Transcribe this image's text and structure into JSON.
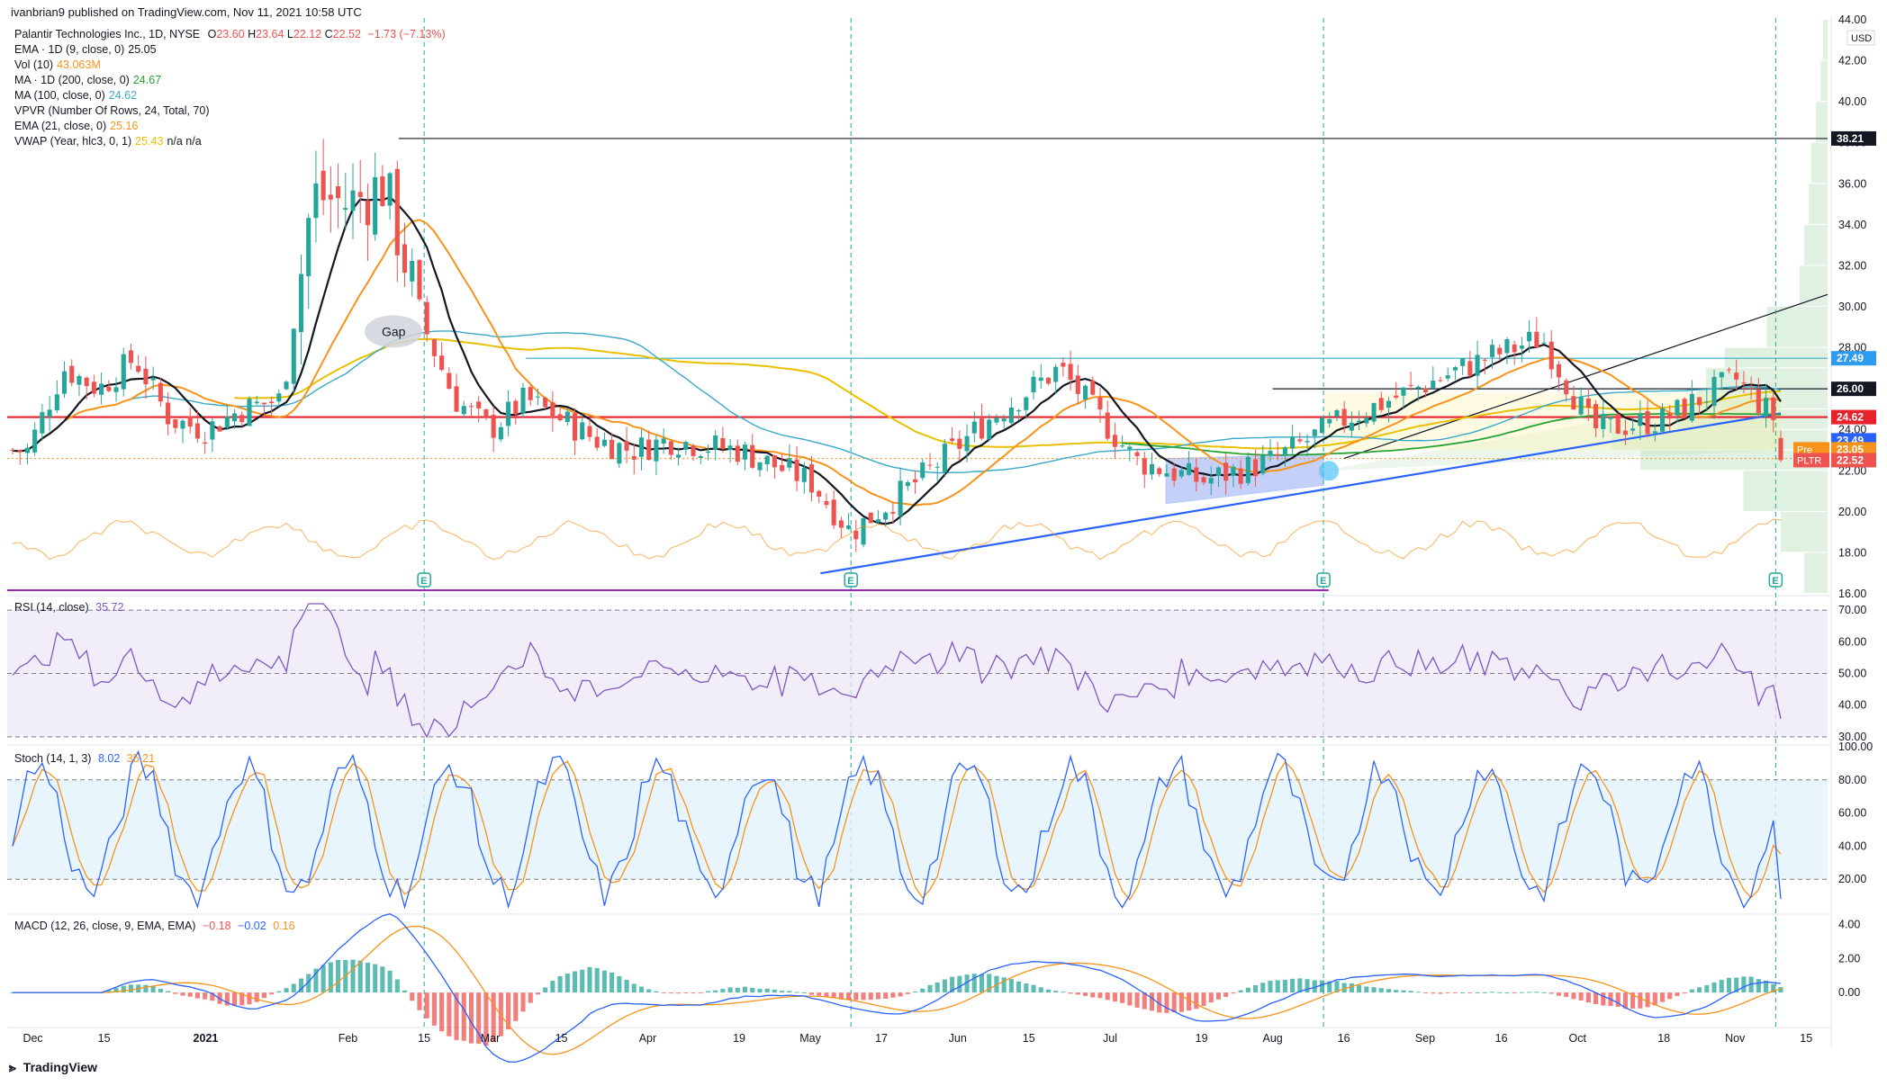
{
  "header": {
    "publisher": "ivanbrian9 published on TradingView.com, Nov 11, 2021 10:58 UTC"
  },
  "symbol_line": {
    "name": "Palantir Technologies Inc., 1D, NYSE",
    "o_label": "O",
    "o": "23.60",
    "h_label": "H",
    "h": "23.64",
    "l_label": "L",
    "l": "22.12",
    "c_label": "C",
    "c": "22.52",
    "change": "−1.73 (−7.13%)"
  },
  "indicators": [
    {
      "label": "EMA · 1D (9, close, 0)",
      "value": "25.05",
      "color": "#131722"
    },
    {
      "label": "Vol (10)",
      "value": "43.063M",
      "color": "#f7931a"
    },
    {
      "label": "MA · 1D (200, close, 0)",
      "value": "24.67",
      "color": "#26a333"
    },
    {
      "label": "MA (100, close, 0)",
      "value": "24.62",
      "color": "#39a9c9"
    },
    {
      "label": "VPVR (Number Of Rows, 24, Total, 70)",
      "value": "",
      "color": "#131722"
    },
    {
      "label": "EMA (21, close, 0)",
      "value": "25.16",
      "color": "#f7931a"
    },
    {
      "label": "VWAP (Year, hlc3, 0, 1)",
      "value": "25.43",
      "extra": "n/a  n/a",
      "color": "#e8c000"
    }
  ],
  "annotations": {
    "gap": "Gap",
    "earnings_marker": "E"
  },
  "price_axis": {
    "currency": "USD",
    "ticks": [
      "44.00",
      "42.00",
      "40.00",
      "38.00",
      "36.00",
      "34.00",
      "32.00",
      "30.00",
      "28.00",
      "26.00",
      "24.00",
      "22.00",
      "20.00",
      "18.00",
      "16.00"
    ]
  },
  "price_badges": [
    {
      "text": "38.21",
      "value": 38.21,
      "bg": "#131722",
      "fg": "#ffffff"
    },
    {
      "text": "27.49",
      "value": 27.49,
      "bg": "#2e9bf0",
      "fg": "#ffffff"
    },
    {
      "text": "26.00",
      "value": 26.0,
      "bg": "#131722",
      "fg": "#ffffff"
    },
    {
      "text": "24.62",
      "value": 24.62,
      "bg": "#e8212d",
      "fg": "#ffffff"
    },
    {
      "text": "23.49",
      "value": 23.49,
      "bg": "#2962ff",
      "fg": "#ffffff"
    },
    {
      "text": "23.05",
      "prefix": "Pre",
      "value": 23.05,
      "bg": "#f7931a",
      "fg": "#ffffff"
    },
    {
      "text": "22.52",
      "prefix": "PLTR",
      "value": 22.52,
      "bg": "#ef5350",
      "fg": "#ffffff"
    }
  ],
  "rsi": {
    "label": "RSI (14, close)",
    "value": "35.72",
    "ticks": [
      "70.00",
      "60.00",
      "50.00",
      "40.00",
      "30.00"
    ]
  },
  "stoch": {
    "label": "Stoch (14, 1, 3)",
    "k": "8.02",
    "d": "35.21",
    "ticks": [
      "100.00",
      "80.00",
      "60.00",
      "40.00",
      "20.00"
    ]
  },
  "macd": {
    "label": "MACD (12, 26, close, 9, EMA, EMA)",
    "hist": "−0.18",
    "macd": "−0.02",
    "signal": "0.16",
    "ticks": [
      "4.00",
      "2.00",
      "0.00"
    ]
  },
  "time_axis": [
    "Dec",
    "15",
    "2021",
    "Feb",
    "15",
    "Mar",
    "15",
    "Apr",
    "19",
    "May",
    "17",
    "Jun",
    "15",
    "Jul",
    "19",
    "Aug",
    "16",
    "Sep",
    "16",
    "Oct",
    "18",
    "Nov",
    "15"
  ],
  "footer": {
    "brand": "TradingView"
  },
  "colors": {
    "up": "#26a69a",
    "down": "#ef5350",
    "ema9": "#131722",
    "ema21": "#f7931a",
    "vwap": "#e8c000",
    "ma100": "#39a9c9",
    "ma200": "#26a333",
    "support": "#2962ff",
    "red_line": "#e8212d",
    "rsi": "#7e57c2",
    "stoch_k": "#2962ff",
    "stoch_d": "#f7931a"
  },
  "chart_data": {
    "type": "candlestick",
    "title": "Palantir Technologies Inc., 1D, NYSE",
    "ylim": [
      16,
      44
    ],
    "levels": {
      "resistance_high": 38.21,
      "gap_top": 27.49,
      "resistance": 26.0,
      "red_line": 24.62
    },
    "earnings_dates": [
      "2021-02-16",
      "2021-05-11",
      "2021-08-12",
      "2021-11-09"
    ],
    "close_path": [
      [
        "2020-11-30",
        23.0
      ],
      [
        "2020-12-07",
        27.0
      ],
      [
        "2020-12-14",
        26.0
      ],
      [
        "2020-12-21",
        27.5
      ],
      [
        "2020-12-28",
        24.5
      ],
      [
        "2021-01-04",
        24.0
      ],
      [
        "2021-01-11",
        25.0
      ],
      [
        "2021-01-19",
        25.5
      ],
      [
        "2021-01-25",
        35.5
      ],
      [
        "2021-02-01",
        35.0
      ],
      [
        "2021-02-08",
        36.0
      ],
      [
        "2021-02-16",
        29.0
      ],
      [
        "2021-02-22",
        25.5
      ],
      [
        "2021-03-01",
        24.0
      ],
      [
        "2021-03-08",
        25.5
      ],
      [
        "2021-03-15",
        24.5
      ],
      [
        "2021-03-22",
        23.5
      ],
      [
        "2021-03-29",
        23.0
      ],
      [
        "2021-04-05",
        23.5
      ],
      [
        "2021-04-19",
        23.0
      ],
      [
        "2021-05-03",
        21.5
      ],
      [
        "2021-05-11",
        19.0
      ],
      [
        "2021-05-24",
        21.5
      ],
      [
        "2021-06-07",
        24.5
      ],
      [
        "2021-06-21",
        27.0
      ],
      [
        "2021-07-06",
        22.5
      ],
      [
        "2021-07-19",
        21.5
      ],
      [
        "2021-08-02",
        22.5
      ],
      [
        "2021-08-16",
        24.5
      ],
      [
        "2021-08-30",
        26.0
      ],
      [
        "2021-09-13",
        27.5
      ],
      [
        "2021-09-24",
        28.5
      ],
      [
        "2021-10-04",
        24.0
      ],
      [
        "2021-10-18",
        24.5
      ],
      [
        "2021-11-01",
        26.5
      ],
      [
        "2021-11-09",
        24.5
      ],
      [
        "2021-11-10",
        22.52
      ]
    ]
  }
}
